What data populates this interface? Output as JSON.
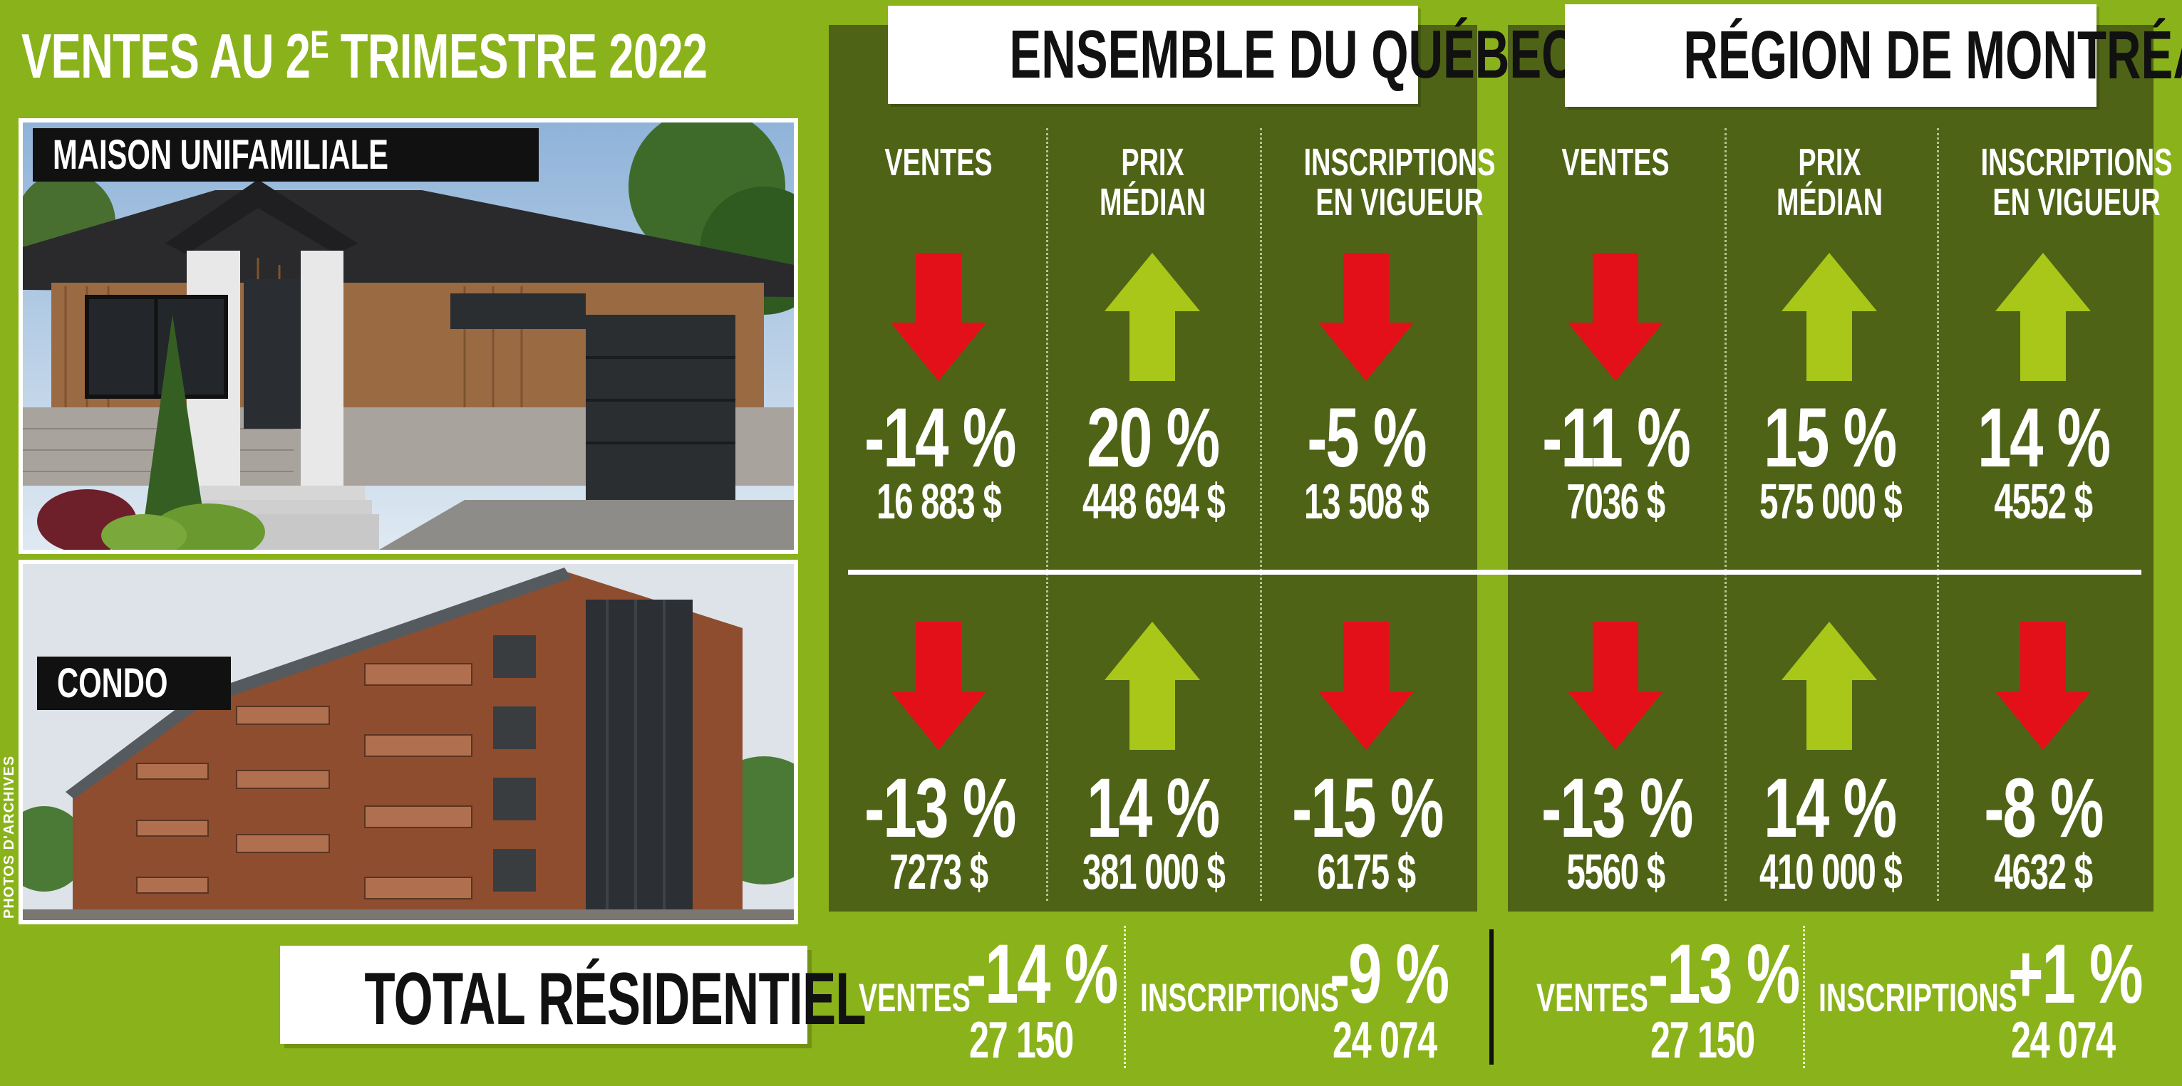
{
  "title": {
    "prefix": "VENTES AU 2",
    "sup": "E",
    "suffix": " TRIMESTRE 2022"
  },
  "photos": {
    "house_tag": "MAISON UNIFAMILIALE",
    "condo_tag": "CONDO",
    "credit": "PHOTOS D'ARCHIVES"
  },
  "colors": {
    "background": "#8ab21a",
    "panel": "#4e6316",
    "arrow_up": "#a8c718",
    "arrow_down": "#e3101a",
    "header_bg": "#ffffff"
  },
  "panels": [
    {
      "header": "ENSEMBLE DU QUÉBEC",
      "columns": [
        "VENTES",
        "PRIX\nMÉDIAN",
        "INSCRIPTIONS\nEN VIGUEUR"
      ],
      "rows": [
        [
          {
            "dir": "down",
            "pct": "-14 %",
            "amount": "16 883 $"
          },
          {
            "dir": "up",
            "pct": "20 %",
            "amount": "448 694 $"
          },
          {
            "dir": "down",
            "pct": "-5 %",
            "amount": "13 508 $"
          }
        ],
        [
          {
            "dir": "down",
            "pct": "-13 %",
            "amount": "7273 $"
          },
          {
            "dir": "up",
            "pct": "14 %",
            "amount": "381 000 $"
          },
          {
            "dir": "down",
            "pct": "-15 %",
            "amount": "6175 $"
          }
        ]
      ]
    },
    {
      "header": "RÉGION DE MONTRÉAL",
      "columns": [
        "VENTES",
        "PRIX\nMÉDIAN",
        "INSCRIPTIONS\nEN VIGUEUR"
      ],
      "rows": [
        [
          {
            "dir": "down",
            "pct": "-11 %",
            "amount": "7036 $"
          },
          {
            "dir": "up",
            "pct": "15 %",
            "amount": "575 000 $"
          },
          {
            "dir": "up",
            "pct": "14 %",
            "amount": "4552 $"
          }
        ],
        [
          {
            "dir": "down",
            "pct": "-13 %",
            "amount": "5560 $"
          },
          {
            "dir": "up",
            "pct": "14 %",
            "amount": "410 000 $"
          },
          {
            "dir": "down",
            "pct": "-8 %",
            "amount": "4632 $"
          }
        ]
      ]
    }
  ],
  "total": {
    "label": "TOTAL RÉSIDENTIEL",
    "quebec": {
      "sales_label": "VENTES",
      "sales_pct": "-14 %",
      "sales_count": "27 150",
      "listings_label": "INSCRIPTIONS",
      "listings_pct": "-9 %",
      "listings_count": "24 074"
    },
    "montreal": {
      "sales_label": "VENTES",
      "sales_pct": "-13 %",
      "sales_count": "27 150",
      "listings_label": "INSCRIPTIONS",
      "listings_pct": "+1 %",
      "listings_count": "24 074"
    }
  }
}
